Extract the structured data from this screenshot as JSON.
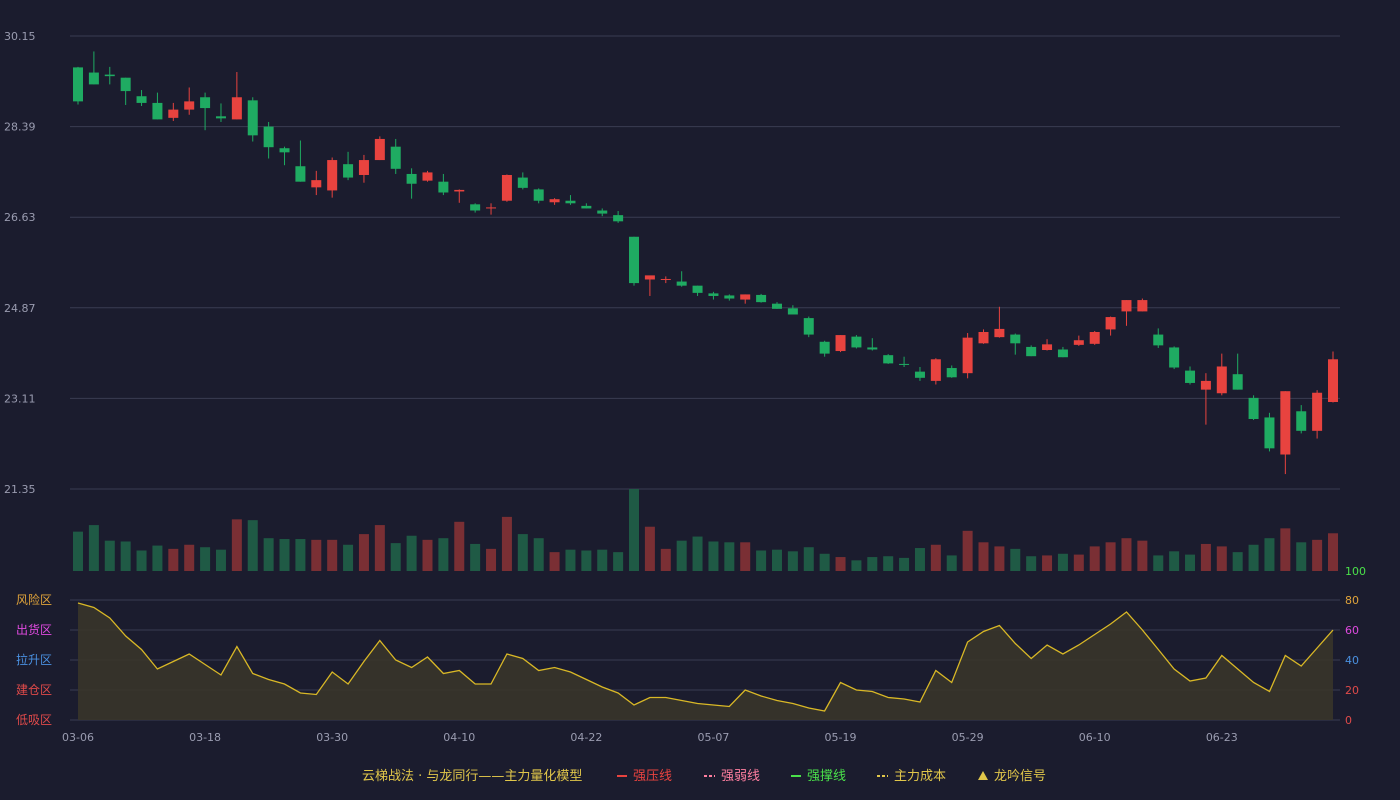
{
  "colors": {
    "background": "#1b1c2e",
    "grid": "#3a3c52",
    "up": "#e8433f",
    "down": "#1fab62",
    "up_volume": "#7a2f34",
    "down_volume": "#1f5a45",
    "oscillator_line": "#d9b826",
    "oscillator_fill": "#3a3629",
    "axis_text": "#9a9cb0"
  },
  "chart_data": {
    "type": "candlestick",
    "title": "",
    "price_axis": {
      "ticks": [
        "30.15",
        "28.39",
        "26.63",
        "24.87",
        "23.11",
        "21.35"
      ],
      "range": [
        21.35,
        30.15
      ]
    },
    "x_tick_labels": [
      "03-06",
      "03-18",
      "03-30",
      "04-10",
      "04-22",
      "05-07",
      "05-19",
      "05-29",
      "06-10",
      "06-23"
    ],
    "x_tick_index": [
      0,
      8,
      16,
      24,
      32,
      40,
      48,
      56,
      64,
      72
    ],
    "candles": [
      [
        29.54,
        28.88,
        29.55,
        28.82
      ],
      [
        29.44,
        29.21,
        29.85,
        29.21
      ],
      [
        29.4,
        29.37,
        29.55,
        29.21
      ],
      [
        29.34,
        29.08,
        29.34,
        28.81
      ],
      [
        28.98,
        28.85,
        29.1,
        28.79
      ],
      [
        28.85,
        28.53,
        29.05,
        28.53
      ],
      [
        28.56,
        28.72,
        28.85,
        28.5
      ],
      [
        28.72,
        28.88,
        29.15,
        28.62
      ],
      [
        28.96,
        28.75,
        29.05,
        28.32
      ],
      [
        28.59,
        28.55,
        28.84,
        28.48
      ],
      [
        28.53,
        28.96,
        29.45,
        28.53
      ],
      [
        28.9,
        28.22,
        28.96,
        28.1
      ],
      [
        28.39,
        27.99,
        28.48,
        27.77
      ],
      [
        27.97,
        27.89,
        28.0,
        27.64
      ],
      [
        27.62,
        27.32,
        28.12,
        27.32
      ],
      [
        27.21,
        27.35,
        27.53,
        27.06
      ],
      [
        27.15,
        27.74,
        27.79,
        27.01
      ],
      [
        27.66,
        27.4,
        27.9,
        27.35
      ],
      [
        27.45,
        27.74,
        27.84,
        27.3
      ],
      [
        27.74,
        28.15,
        28.2,
        27.74
      ],
      [
        28.0,
        27.57,
        28.15,
        27.47
      ],
      [
        27.47,
        27.28,
        27.58,
        26.99
      ],
      [
        27.34,
        27.5,
        27.53,
        27.32
      ],
      [
        27.32,
        27.11,
        27.47,
        27.06
      ],
      [
        27.13,
        27.16,
        27.17,
        26.91
      ],
      [
        26.88,
        26.76,
        26.9,
        26.72
      ],
      [
        26.8,
        26.82,
        26.9,
        26.68
      ],
      [
        26.95,
        27.45,
        27.46,
        26.93
      ],
      [
        27.4,
        27.2,
        27.5,
        27.17
      ],
      [
        27.17,
        26.95,
        27.19,
        26.9
      ],
      [
        26.92,
        26.98,
        27.0,
        26.87
      ],
      [
        26.95,
        26.9,
        27.06,
        26.87
      ],
      [
        26.85,
        26.8,
        26.9,
        26.8
      ],
      [
        26.76,
        26.7,
        26.8,
        26.65
      ],
      [
        26.67,
        26.55,
        26.75,
        26.52
      ],
      [
        26.25,
        25.35,
        26.25,
        25.3
      ],
      [
        25.42,
        25.5,
        25.42,
        25.1
      ],
      [
        25.43,
        25.43,
        25.48,
        25.35
      ],
      [
        25.38,
        25.3,
        25.58,
        25.28
      ],
      [
        25.3,
        25.16,
        25.3,
        25.1
      ],
      [
        25.15,
        25.1,
        25.18,
        25.03
      ],
      [
        25.11,
        25.05,
        25.13,
        25.01
      ],
      [
        25.03,
        25.13,
        25.13,
        24.95
      ],
      [
        25.12,
        24.98,
        25.14,
        24.97
      ],
      [
        24.95,
        24.85,
        24.98,
        24.85
      ],
      [
        24.86,
        24.74,
        24.92,
        24.74
      ],
      [
        24.67,
        24.35,
        24.7,
        24.3
      ],
      [
        24.21,
        23.98,
        24.23,
        23.92
      ],
      [
        24.03,
        24.34,
        24.34,
        24.01
      ],
      [
        24.31,
        24.1,
        24.34,
        24.08
      ],
      [
        24.1,
        24.06,
        24.28,
        24.04
      ],
      [
        23.95,
        23.79,
        23.97,
        23.78
      ],
      [
        23.78,
        23.76,
        23.92,
        23.72
      ],
      [
        23.63,
        23.51,
        23.72,
        23.45
      ],
      [
        23.45,
        23.87,
        23.89,
        23.38
      ],
      [
        23.7,
        23.52,
        23.75,
        23.51
      ],
      [
        23.6,
        24.29,
        24.38,
        23.5
      ],
      [
        24.18,
        24.4,
        24.45,
        24.17
      ],
      [
        24.3,
        24.46,
        24.89,
        24.29
      ],
      [
        24.35,
        24.18,
        24.37,
        23.96
      ],
      [
        24.11,
        23.93,
        24.14,
        23.93
      ],
      [
        24.05,
        24.16,
        24.26,
        24.04
      ],
      [
        24.06,
        23.91,
        24.11,
        23.91
      ],
      [
        24.15,
        24.24,
        24.33,
        24.13
      ],
      [
        24.17,
        24.4,
        24.42,
        24.15
      ],
      [
        24.45,
        24.69,
        24.7,
        24.33
      ],
      [
        24.8,
        25.02,
        25.02,
        24.52
      ],
      [
        24.8,
        25.02,
        25.05,
        24.8
      ],
      [
        24.35,
        24.14,
        24.47,
        24.09
      ],
      [
        24.1,
        23.71,
        24.12,
        23.68
      ],
      [
        23.65,
        23.41,
        23.73,
        23.38
      ],
      [
        23.28,
        23.45,
        23.6,
        22.6
      ],
      [
        23.21,
        23.73,
        23.98,
        23.17
      ],
      [
        23.58,
        23.28,
        23.98,
        23.28
      ],
      [
        23.12,
        22.71,
        23.17,
        22.69
      ],
      [
        22.74,
        22.14,
        22.83,
        22.08
      ],
      [
        22.02,
        23.25,
        23.25,
        21.64
      ],
      [
        22.86,
        22.48,
        22.98,
        22.43
      ],
      [
        22.48,
        23.22,
        23.27,
        22.33
      ],
      [
        23.04,
        23.87,
        24.02,
        23.03
      ]
    ],
    "volume": [
      48,
      56,
      37,
      36,
      25,
      31,
      27,
      32,
      29,
      26,
      63,
      62,
      40,
      39,
      39,
      38,
      38,
      32,
      45,
      56,
      34,
      43,
      38,
      40,
      60,
      33,
      27,
      66,
      45,
      40,
      23,
      26,
      25,
      26,
      23,
      100,
      54,
      27,
      37,
      42,
      36,
      35,
      35,
      25,
      26,
      24,
      29,
      21,
      17,
      13,
      17,
      18,
      16,
      28,
      32,
      19,
      49,
      35,
      30,
      27,
      18,
      19,
      21,
      20,
      30,
      35,
      40,
      37,
      19,
      24,
      20,
      33,
      30,
      23,
      32,
      40,
      52,
      35,
      38,
      46
    ],
    "volume_axis_max_label": "100",
    "oscillator": {
      "zones": [
        "风险区",
        "出货区",
        "拉升区",
        "建仓区",
        "低吸区"
      ],
      "zone_colors": [
        "#e0a33a",
        "#e04ae0",
        "#4a90e0",
        "#e04a4a",
        "#e04a4a"
      ],
      "axis_ticks": [
        "80",
        "60",
        "40",
        "20",
        "0"
      ],
      "axis_colors": [
        "#e0a33a",
        "#e04ae0",
        "#4a90e0",
        "#e04a4a",
        "#e04a4a"
      ],
      "range": [
        0,
        80
      ],
      "values": [
        78,
        75,
        68,
        56,
        47,
        34,
        39,
        44,
        37,
        30,
        49,
        31,
        27,
        24,
        18,
        17,
        32,
        24,
        39,
        53,
        40,
        35,
        42,
        31,
        33,
        24,
        24,
        44,
        41,
        33,
        35,
        32,
        27,
        22,
        18,
        10,
        15,
        15,
        13,
        11,
        10,
        9,
        20,
        16,
        13,
        11,
        8,
        6,
        25,
        20,
        19,
        15,
        14,
        12,
        33,
        25,
        52,
        59,
        63,
        51,
        41,
        50,
        44,
        50,
        57,
        64,
        72,
        60,
        47,
        34,
        26,
        28,
        43,
        34,
        25,
        19,
        43,
        36,
        48,
        60
      ]
    },
    "legend": [
      {
        "label": "云梯战法 · 与龙同行——主力量化模型",
        "marker": "none",
        "color": "#e0c64a"
      },
      {
        "label": "强压线",
        "marker": "line",
        "color": "#e8433f"
      },
      {
        "label": "强弱线",
        "marker": "dashed",
        "color": "#ff7fa0"
      },
      {
        "label": "强撑线",
        "marker": "line",
        "color": "#4ae04a"
      },
      {
        "label": "主力成本",
        "marker": "dashed",
        "color": "#e0c64a"
      },
      {
        "label": "龙吟信号",
        "marker": "triangle",
        "color": "#e0c64a"
      }
    ]
  }
}
